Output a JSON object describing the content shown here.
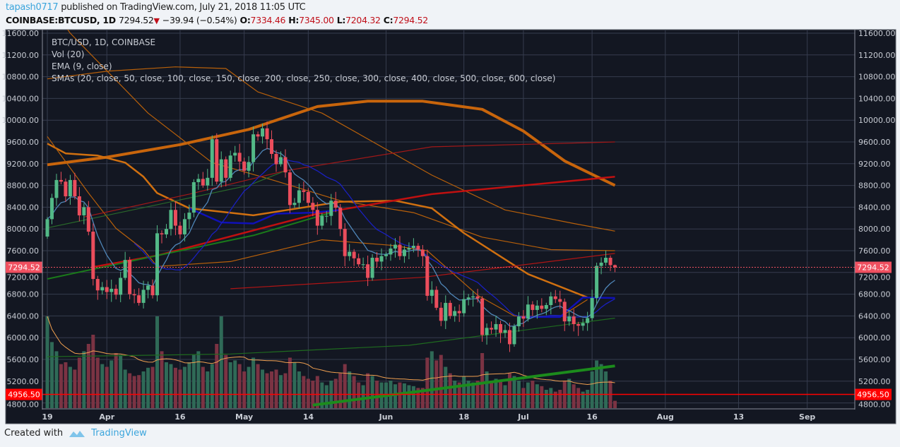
{
  "header": {
    "username": "tapash0717",
    "published_text": "published on TradingView.com, July 21, 2018 11:05 UTC",
    "symbol": "COINBASE:BTCUSD, 1D",
    "last": "7294.52",
    "change": "−39.94 (−0.54%)",
    "o_label": "O:",
    "o": "7334.46",
    "h_label": "H:",
    "h": "7345.00",
    "l_label": "L:",
    "l": "7204.32",
    "c_label": "C:",
    "c": "7294.52"
  },
  "legend": {
    "title": "BTC/USD, 1D, COINBASE",
    "vol": "Vol (20)",
    "ema": "EMA (9, close)",
    "smas": "SMAs (20, close, 50, close, 100, close, 150, close, 200, close, 250, close, 300, close, 400, close, 500, close, 600, close)"
  },
  "footer": {
    "created_with": "Created with",
    "brand": "TradingView"
  },
  "colors": {
    "up": "#53b987",
    "down": "#eb4d5c",
    "vol_up": "#2f6a57",
    "vol_down": "#7b3343",
    "bg": "#131722",
    "grid": "#363c4e",
    "price_line": "#f05060",
    "level_line": "#ff0000"
  },
  "chart_data": {
    "type": "candlestick",
    "title": "BTC/USD, 1D, COINBASE",
    "ylim": [
      4700,
      11700
    ],
    "y_ticks": [
      "4800.00",
      "5200.00",
      "5600.00",
      "6000.00",
      "6400.00",
      "6800.00",
      "7200.00",
      "7600.00",
      "8000.00",
      "8400.00",
      "8800.00",
      "9200.00",
      "9600.00",
      "10000.00",
      "10400.00",
      "10800.00",
      "11200.00",
      "11600.00"
    ],
    "x_ticks": [
      {
        "label": "19",
        "day": 0
      },
      {
        "label": "Apr",
        "day": 13
      },
      {
        "label": "16",
        "day": 29
      },
      {
        "label": "May",
        "day": 43
      },
      {
        "label": "14",
        "day": 57
      },
      {
        "label": "Jun",
        "day": 74
      },
      {
        "label": "18",
        "day": 91
      },
      {
        "label": "Jul",
        "day": 104
      },
      {
        "label": "16",
        "day": 119
      },
      {
        "label": "Aug",
        "day": 135
      },
      {
        "label": "13",
        "day": 151
      },
      {
        "label": "Sep",
        "day": 166
      }
    ],
    "x_range_days": [
      -1,
      176
    ],
    "first_open": 7860,
    "closes": [
      8180,
      8570,
      8900,
      8870,
      8600,
      8900,
      8600,
      8250,
      8400,
      7950,
      7080,
      6870,
      6930,
      6840,
      6900,
      6790,
      7100,
      7430,
      6800,
      6780,
      6640,
      6880,
      6960,
      6780,
      7920,
      7900,
      8000,
      8350,
      8060,
      7900,
      8180,
      8300,
      8860,
      8920,
      8800,
      8940,
      9650,
      8870,
      9280,
      8940,
      9350,
      9400,
      9240,
      9070,
      9230,
      9740,
      9700,
      9850,
      9650,
      9380,
      9190,
      9320,
      9040,
      8440,
      8480,
      8710,
      8680,
      8480,
      8350,
      8060,
      8240,
      8240,
      8520,
      8390,
      8000,
      7500,
      7580,
      7460,
      7350,
      7350,
      7100,
      7470,
      7400,
      7500,
      7530,
      7640,
      7710,
      7500,
      7620,
      7650,
      7690,
      7620,
      7500,
      6770,
      6880,
      6550,
      6310,
      6640,
      6400,
      6490,
      6450,
      6710,
      6740,
      6760,
      6720,
      6050,
      6180,
      6150,
      6250,
      6090,
      6140,
      5880,
      6210,
      6390,
      6350,
      6610,
      6510,
      6590,
      6530,
      6600,
      6760,
      6710,
      6660,
      6300,
      6390,
      6250,
      6220,
      6270,
      6360,
      6730,
      7320,
      7380,
      7470,
      7334.46,
      7294.52
    ],
    "last_high": 7345.0,
    "last_low": 7204.32,
    "volume_relative": [
      100,
      72,
      62,
      48,
      50,
      45,
      42,
      55,
      62,
      70,
      80,
      55,
      48,
      45,
      52,
      60,
      58,
      42,
      38,
      35,
      36,
      40,
      44,
      45,
      100,
      62,
      50,
      48,
      44,
      42,
      45,
      50,
      58,
      62,
      45,
      40,
      48,
      70,
      100,
      58,
      50,
      52,
      48,
      40,
      45,
      55,
      48,
      42,
      38,
      40,
      42,
      36,
      38,
      55,
      50,
      40,
      35,
      32,
      30,
      35,
      28,
      25,
      30,
      32,
      38,
      48,
      40,
      35,
      28,
      25,
      38,
      35,
      30,
      28,
      28,
      30,
      26,
      28,
      27,
      25,
      24,
      22,
      22,
      55,
      62,
      52,
      58,
      45,
      38,
      30,
      28,
      35,
      30,
      28,
      30,
      60,
      40,
      30,
      32,
      30,
      25,
      38,
      35,
      30,
      22,
      28,
      30,
      26,
      24,
      20,
      22,
      18,
      20,
      30,
      32,
      26,
      22,
      18,
      20,
      40,
      52,
      48,
      40,
      30,
      8
    ],
    "ema_period": 9,
    "vol_ma_period": 20,
    "ma_lines": [
      {
        "name": "sma-thick-orange",
        "color": "#c8650c",
        "points": [
          [
            0,
            9180
          ],
          [
            13,
            9320
          ],
          [
            29,
            9550
          ],
          [
            44,
            9830
          ],
          [
            59,
            10250
          ],
          [
            70,
            10350
          ],
          [
            82,
            10350
          ],
          [
            95,
            10200
          ],
          [
            104,
            9800
          ],
          [
            113,
            9250
          ],
          [
            124,
            8800
          ]
        ]
      },
      {
        "name": "sma-top-orange",
        "color": "#b8600a",
        "points": [
          [
            0,
            10760
          ],
          [
            13,
            10900
          ],
          [
            28,
            10980
          ],
          [
            39,
            10950
          ],
          [
            46,
            10520
          ],
          [
            60,
            10130
          ],
          [
            84,
            8990
          ],
          [
            100,
            8350
          ],
          [
            115,
            8100
          ],
          [
            124,
            7960
          ]
        ]
      },
      {
        "name": "sma-steep-orange",
        "color": "#b8600a",
        "points": [
          [
            0,
            12200
          ],
          [
            5,
            11600
          ],
          [
            22,
            10130
          ],
          [
            36,
            9220
          ],
          [
            50,
            8880
          ],
          [
            64,
            8520
          ],
          [
            80,
            8300
          ],
          [
            95,
            7850
          ],
          [
            110,
            7620
          ],
          [
            124,
            7600
          ]
        ]
      },
      {
        "name": "sma-medium-orange",
        "color": "#d07010",
        "points": [
          [
            0,
            9570
          ],
          [
            4,
            9390
          ],
          [
            11,
            9350
          ],
          [
            17,
            9220
          ],
          [
            21,
            8960
          ],
          [
            24,
            8660
          ],
          [
            31,
            8380
          ],
          [
            45,
            8250
          ],
          [
            64,
            8500
          ],
          [
            76,
            8520
          ],
          [
            84,
            8380
          ],
          [
            91,
            7925
          ],
          [
            105,
            7170
          ],
          [
            118,
            6740
          ]
        ]
      },
      {
        "name": "sma-fast-orange",
        "color": "#b8600a",
        "points": [
          [
            0,
            9700
          ],
          [
            9,
            8660
          ],
          [
            15,
            8010
          ],
          [
            21,
            7620
          ],
          [
            24,
            7310
          ],
          [
            40,
            7400
          ],
          [
            60,
            7800
          ],
          [
            75,
            7700
          ],
          [
            83,
            7600
          ],
          [
            94,
            6780
          ],
          [
            102,
            6400
          ],
          [
            112,
            6380
          ],
          [
            118,
            6700
          ]
        ]
      },
      {
        "name": "sma-top-red",
        "color": "#a01818",
        "points": [
          [
            8,
            8220
          ],
          [
            31,
            8640
          ],
          [
            52,
            9070
          ],
          [
            84,
            9510
          ],
          [
            124,
            9600
          ]
        ]
      },
      {
        "name": "sma-thick-red",
        "color": "#c01010",
        "points": [
          [
            10,
            7300
          ],
          [
            24,
            7510
          ],
          [
            59,
            8280
          ],
          [
            84,
            8640
          ],
          [
            124,
            8960
          ]
        ]
      },
      {
        "name": "sma-lower-red",
        "color": "#b01515",
        "points": [
          [
            40,
            6900
          ],
          [
            82,
            7110
          ],
          [
            124,
            7550
          ]
        ]
      },
      {
        "name": "sma-mid-green",
        "color": "#1a7a1a",
        "points": [
          [
            0,
            7080
          ],
          [
            24,
            7510
          ],
          [
            45,
            7880
          ],
          [
            62,
            8300
          ]
        ]
      },
      {
        "name": "sma-upper-green",
        "color": "#2a6a2a",
        "points": [
          [
            0,
            8020
          ],
          [
            44,
            8800
          ],
          [
            52,
            9070
          ]
        ]
      },
      {
        "name": "sma-lower-green",
        "color": "#1f6a1f",
        "points": [
          [
            0,
            5650
          ],
          [
            40,
            5700
          ],
          [
            79,
            5860
          ],
          [
            124,
            6360
          ]
        ]
      },
      {
        "name": "sma-thick-green",
        "color": "#1c8c1c",
        "points": [
          [
            58,
            4760
          ],
          [
            124,
            5480
          ]
        ]
      },
      {
        "name": "sma-thick-blue",
        "color": "#1010b8",
        "points": [
          [
            31,
            8380
          ],
          [
            38,
            8120
          ],
          [
            45,
            8100
          ],
          [
            50,
            8280
          ],
          [
            58,
            8300
          ],
          [
            64,
            8350
          ]
        ]
      },
      {
        "name": "sma-thick-blue-2",
        "color": "#1010b8",
        "points": [
          [
            103,
            6380
          ],
          [
            112,
            6380
          ],
          [
            117,
            6740
          ],
          [
            124,
            6730
          ]
        ]
      }
    ],
    "price_line": {
      "value": 7294.52,
      "label": "7294.52"
    },
    "level_line": {
      "value": 4956.5,
      "label": "4956.50"
    }
  }
}
